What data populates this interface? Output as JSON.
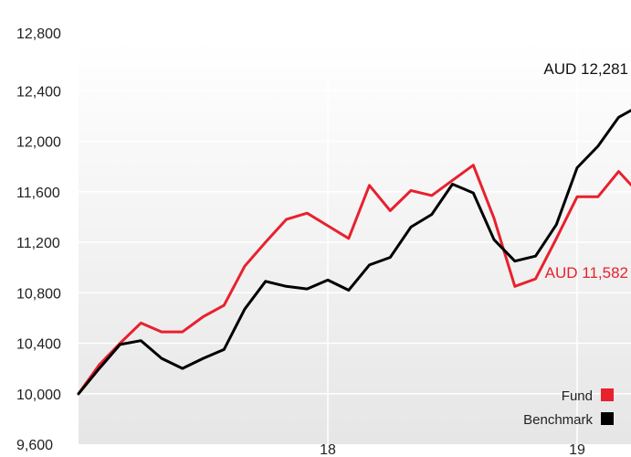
{
  "chart_data": {
    "type": "line",
    "x_start": "2017-01",
    "x_step": "month",
    "x_ticks": [
      {
        "label": "18",
        "date": "2018-01"
      },
      {
        "label": "19",
        "date": "2019-01"
      }
    ],
    "y_ticks": [
      "12,800",
      "12,400",
      "12,000",
      "11,600",
      "11,200",
      "10,800",
      "10,400",
      "10,000",
      "9,600"
    ],
    "ylim": [
      9600,
      12800
    ],
    "grid": true,
    "legend_position": "bottom-right",
    "series": [
      {
        "name": "Fund",
        "color": "#e8212e",
        "end_label": "AUD 11,582",
        "values": [
          10000,
          10230,
          10400,
          10560,
          10490,
          10490,
          10610,
          10700,
          11010,
          11200,
          11380,
          11430,
          11330,
          11230,
          11650,
          11450,
          11610,
          11570,
          11690,
          11810,
          11390,
          10850,
          10910,
          11230,
          11560,
          11560,
          11760,
          11582
        ]
      },
      {
        "name": "Benchmark",
        "color": "#000000",
        "end_label": "AUD 12,281",
        "values": [
          10000,
          10200,
          10390,
          10420,
          10280,
          10200,
          10280,
          10350,
          10670,
          10890,
          10850,
          10830,
          10900,
          10820,
          11020,
          11080,
          11320,
          11420,
          11660,
          11590,
          11220,
          11050,
          11090,
          11340,
          11790,
          11960,
          12190,
          12281
        ]
      }
    ]
  }
}
